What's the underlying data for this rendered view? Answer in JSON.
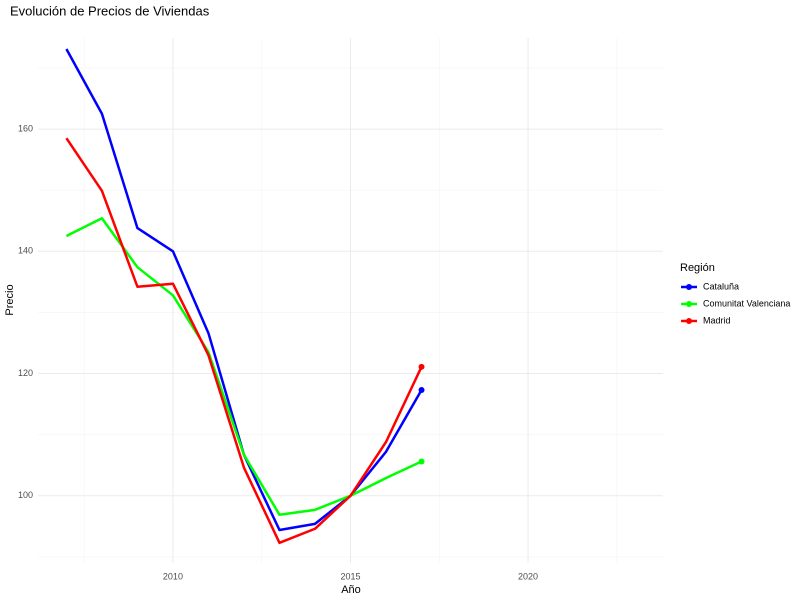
{
  "chart_data": {
    "type": "line",
    "title": "Evolución de Precios de Viviendas",
    "x_label": "Año",
    "y_label": "Precio",
    "legend_title": "Región",
    "x": [
      2007,
      2008,
      2009,
      2010,
      2011,
      2012,
      2013,
      2014,
      2015,
      2016,
      2017
    ],
    "series": [
      {
        "name": "Cataluña",
        "color": "#0000ff",
        "values": [
          173.1,
          162.5,
          143.8,
          140.0,
          126.6,
          106.7,
          94.4,
          95.4,
          100,
          107.2,
          117.3
        ]
      },
      {
        "name": "Comunitat Valenciana",
        "color": "#00ff00",
        "values": [
          142.5,
          145.4,
          137.4,
          132.8,
          123.5,
          106.7,
          96.9,
          97.7,
          100,
          102.9,
          105.6
        ]
      },
      {
        "name": "Madrid",
        "color": "#ff0000",
        "values": [
          158.5,
          149.9,
          134.2,
          134.7,
          123.0,
          104.6,
          92.3,
          94.6,
          100,
          108.8,
          121.1
        ]
      }
    ],
    "xlim": [
      2006.2,
      2023.8
    ],
    "xticks": [
      2010,
      2015,
      2020
    ],
    "ylim": [
      89.0,
      174.9
    ],
    "yticks": [
      100,
      120,
      140,
      160
    ],
    "grid": true,
    "legend_position": "right",
    "end_points": true
  }
}
